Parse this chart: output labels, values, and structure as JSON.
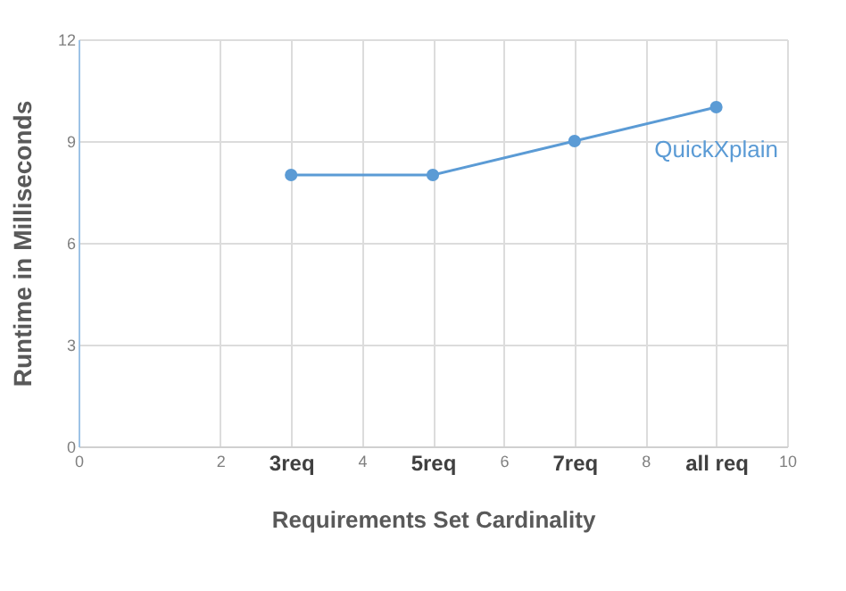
{
  "chart_data": {
    "type": "line",
    "xlabel": "Requirements Set Cardinality",
    "ylabel": "Runtime in Milliseconds",
    "x": [
      3,
      5,
      7,
      9
    ],
    "series": [
      {
        "name": "QuickXplain",
        "color": "#5b9bd5",
        "values": [
          8,
          8,
          9,
          10
        ]
      }
    ],
    "xlim": [
      0,
      10
    ],
    "xticks": [
      0,
      2,
      {
        "value": 3,
        "label": "3req"
      },
      4,
      {
        "value": 5,
        "label": "5req"
      },
      6,
      {
        "value": 7,
        "label": "7req"
      },
      8,
      {
        "value": 9,
        "label": "all req"
      },
      10
    ],
    "ylim": [
      0,
      12
    ],
    "yticks": [
      0,
      3,
      6,
      9,
      12
    ],
    "grid": true,
    "legend": false,
    "marker": "circle",
    "line_style": "solid"
  }
}
